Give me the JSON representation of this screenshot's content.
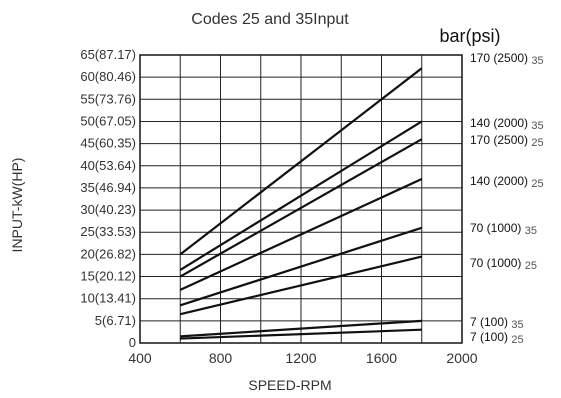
{
  "chart_data": {
    "type": "line",
    "title": "Codes 25 and 35Input",
    "unit_label": "bar(psi)",
    "xlabel": "SPEED-RPM",
    "ylabel": "INPUT-kW(HP)",
    "xlim": [
      400,
      2000
    ],
    "ylim": [
      0,
      65
    ],
    "x_ticks": [
      "400",
      "800",
      "1200",
      "1600",
      "2000"
    ],
    "y_ticks": [
      "0",
      "5(6.71)",
      "10(13.41)",
      "15(20.12)",
      "20(26.82)",
      "25(33.53)",
      "30(40.23)",
      "35(46.94)",
      "40(53.64)",
      "45(60.35)",
      "50(67.05)",
      "55(73.76)",
      "60(80.46)",
      "65(87.17)"
    ],
    "grid": true,
    "legend": "right",
    "series": [
      {
        "name": "170 (2500)",
        "code": "35",
        "x": [
          600,
          1800
        ],
        "y": [
          20,
          62
        ]
      },
      {
        "name": "140 (2000)",
        "code": "35",
        "x": [
          600,
          1800
        ],
        "y": [
          16.5,
          50
        ]
      },
      {
        "name": "170 (2500)",
        "code": "25",
        "x": [
          600,
          1800
        ],
        "y": [
          15,
          46
        ]
      },
      {
        "name": "140 (2000)",
        "code": "25",
        "x": [
          600,
          1800
        ],
        "y": [
          12,
          37
        ]
      },
      {
        "name": "70 (1000)",
        "code": "35",
        "x": [
          600,
          1800
        ],
        "y": [
          8.5,
          26
        ]
      },
      {
        "name": "70 (1000)",
        "code": "25",
        "x": [
          600,
          1800
        ],
        "y": [
          6.5,
          19.5
        ]
      },
      {
        "name": "7 (100)",
        "code": "35",
        "x": [
          600,
          1800
        ],
        "y": [
          1.5,
          5
        ]
      },
      {
        "name": "7 (100)",
        "code": "25",
        "x": [
          600,
          1800
        ],
        "y": [
          1,
          3
        ]
      }
    ]
  }
}
